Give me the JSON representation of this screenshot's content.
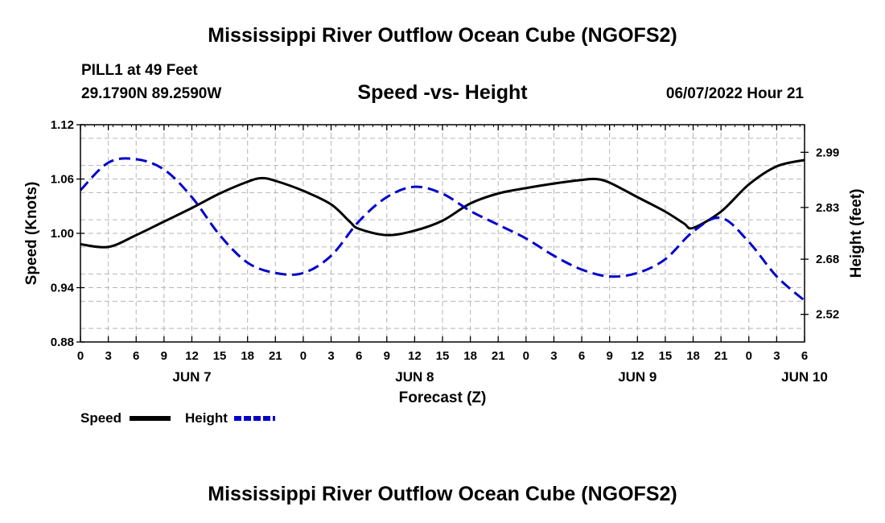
{
  "header": {
    "title": "Mississippi River Outflow Ocean Cube (NGOFS2)",
    "station_line": "PILL1 at 49 Feet",
    "coords": "29.1790N  89.2590W",
    "subtitle": "Speed -vs- Height",
    "datetime": "06/07/2022 Hour 21",
    "footer_title": "Mississippi River Outflow Ocean Cube (NGOFS2)"
  },
  "chart_data": {
    "type": "line",
    "title": "Speed -vs- Height",
    "xlabel": "Forecast (Z)",
    "ylabel": "Speed (Knots)",
    "y2label": "Height (feet)",
    "x_tick_labels": [
      "0",
      "3",
      "6",
      "9",
      "12",
      "15",
      "18",
      "21",
      "0",
      "3",
      "6",
      "9",
      "12",
      "15",
      "18",
      "21",
      "0",
      "3",
      "6",
      "9",
      "12",
      "15",
      "18",
      "21",
      "0",
      "3",
      "6"
    ],
    "date_labels": [
      {
        "label": "JUN 7",
        "tick_index": 4
      },
      {
        "label": "JUN 8",
        "tick_index": 12
      },
      {
        "label": "JUN 9",
        "tick_index": 20
      },
      {
        "label": "JUN 10",
        "tick_index": 26
      }
    ],
    "xlim": [
      0,
      78
    ],
    "ylim": [
      0.88,
      1.12
    ],
    "y_ticks": [
      "1.12",
      "1.06",
      "1.00",
      "0.94",
      "0.88"
    ],
    "y2lim": [
      2.44,
      3.07
    ],
    "y2_ticks": [
      "2.99",
      "2.83",
      "2.68",
      "2.52"
    ],
    "grid": true,
    "series": [
      {
        "name": "Speed",
        "axis": "left",
        "color": "#000000",
        "style": "solid",
        "x": [
          0,
          3,
          6,
          9,
          12,
          15,
          18,
          19.5,
          21,
          24,
          27,
          29,
          30,
          33,
          36,
          39,
          42,
          45,
          48,
          51,
          54,
          55.5,
          57,
          60,
          63,
          65,
          66,
          69,
          72,
          75,
          78
        ],
        "y": [
          0.988,
          0.985,
          0.998,
          1.013,
          1.028,
          1.044,
          1.057,
          1.061,
          1.058,
          1.047,
          1.032,
          1.013,
          1.005,
          0.998,
          1.003,
          1.014,
          1.033,
          1.044,
          1.05,
          1.055,
          1.059,
          1.06,
          1.056,
          1.04,
          1.024,
          1.011,
          1.006,
          1.024,
          1.054,
          1.074,
          1.081
        ]
      },
      {
        "name": "Height",
        "axis": "right",
        "color": "#0000cc",
        "style": "dashed",
        "x": [
          0,
          3,
          6,
          9,
          12,
          15,
          18,
          21,
          24,
          27,
          30,
          33,
          36,
          39,
          42,
          45,
          48,
          51,
          54,
          57,
          60,
          63,
          66,
          69,
          72,
          75,
          78
        ],
        "y": [
          2.88,
          2.96,
          2.97,
          2.94,
          2.86,
          2.75,
          2.67,
          2.64,
          2.64,
          2.69,
          2.79,
          2.86,
          2.89,
          2.87,
          2.82,
          2.78,
          2.74,
          2.69,
          2.65,
          2.63,
          2.64,
          2.68,
          2.76,
          2.8,
          2.73,
          2.63,
          2.56
        ]
      }
    ],
    "legend": {
      "placement": "bottom-left",
      "speed_label": "Speed",
      "height_label": "Height"
    }
  }
}
